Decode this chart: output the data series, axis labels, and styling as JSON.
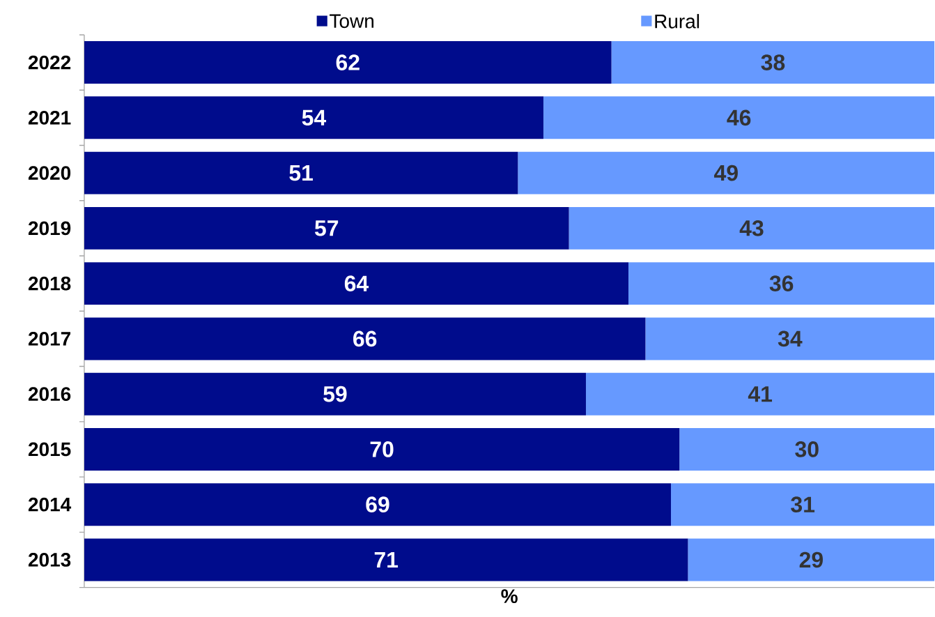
{
  "chart_data": {
    "type": "bar",
    "orientation": "horizontal",
    "stacked": true,
    "xlabel": "%",
    "legend": "top",
    "data_labels": true,
    "categories": [
      "2022",
      "2021",
      "2020",
      "2019",
      "2018",
      "2017",
      "2016",
      "2015",
      "2014",
      "2013"
    ],
    "series": [
      {
        "name": "Town",
        "color": "#000c8c",
        "values": [
          62,
          54,
          51,
          57,
          64,
          66,
          59,
          70,
          69,
          71
        ]
      },
      {
        "name": "Rural",
        "color": "#6699ff",
        "values": [
          38,
          46,
          49,
          43,
          36,
          34,
          41,
          30,
          31,
          29
        ]
      }
    ]
  }
}
